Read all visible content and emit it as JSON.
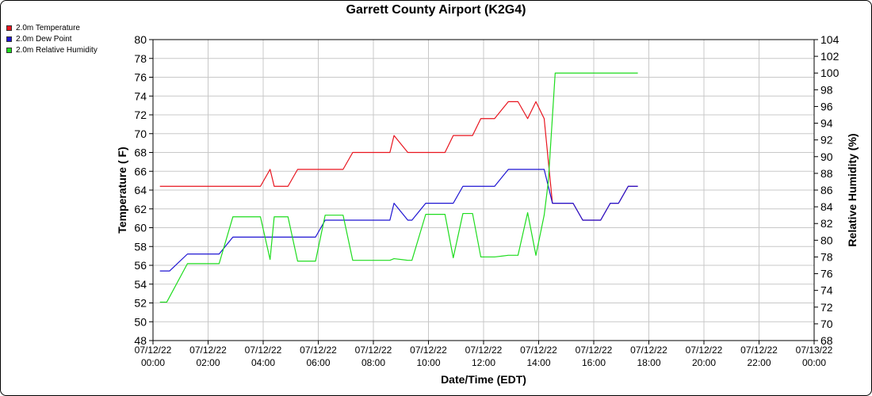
{
  "chart_data": {
    "type": "line",
    "title": "Garrett County Airport (K2G4)",
    "xlabel": "Date/Time (EDT)",
    "ylabel_left": "Temperature ( F)",
    "ylabel_right": "Relative Humidity (%)",
    "y_left_range": [
      48,
      80
    ],
    "y_left_ticks": [
      "48",
      "50",
      "52",
      "54",
      "56",
      "58",
      "60",
      "62",
      "64",
      "66",
      "68",
      "70",
      "72",
      "74",
      "76",
      "78",
      "80"
    ],
    "y_right_range": [
      68,
      104
    ],
    "y_right_ticks": [
      "68",
      "70",
      "72",
      "74",
      "76",
      "78",
      "80",
      "82",
      "84",
      "86",
      "88",
      "90",
      "92",
      "94",
      "96",
      "98",
      "100",
      "102",
      "104"
    ],
    "x_range_hours": [
      0,
      24
    ],
    "x_ticks": [
      {
        "hour": 0,
        "date": "07/12/22",
        "time": "00:00"
      },
      {
        "hour": 2,
        "date": "07/12/22",
        "time": "02:00"
      },
      {
        "hour": 4,
        "date": "07/12/22",
        "time": "04:00"
      },
      {
        "hour": 6,
        "date": "07/12/22",
        "time": "06:00"
      },
      {
        "hour": 8,
        "date": "07/12/22",
        "time": "08:00"
      },
      {
        "hour": 10,
        "date": "07/12/22",
        "time": "10:00"
      },
      {
        "hour": 12,
        "date": "07/12/22",
        "time": "12:00"
      },
      {
        "hour": 14,
        "date": "07/12/22",
        "time": "14:00"
      },
      {
        "hour": 16,
        "date": "07/12/22",
        "time": "16:00"
      },
      {
        "hour": 18,
        "date": "07/12/22",
        "time": "18:00"
      },
      {
        "hour": 20,
        "date": "07/12/22",
        "time": "20:00"
      },
      {
        "hour": 22,
        "date": "07/12/22",
        "time": "22:00"
      },
      {
        "hour": 24,
        "date": "07/13/22",
        "time": "00:00"
      }
    ],
    "grid": true,
    "legend_position": "top-left",
    "series": [
      {
        "name": "2.0m Temperature",
        "color": "#e8141e",
        "axis": "left",
        "points": [
          [
            0.25,
            64.4
          ],
          [
            0.5,
            64.4
          ],
          [
            3.9,
            64.4
          ],
          [
            4.25,
            66.2
          ],
          [
            4.4,
            64.4
          ],
          [
            4.9,
            64.4
          ],
          [
            5.25,
            66.2
          ],
          [
            6.9,
            66.2
          ],
          [
            7.25,
            68.0
          ],
          [
            8.6,
            68.0
          ],
          [
            8.75,
            69.8
          ],
          [
            9.25,
            68.0
          ],
          [
            10.6,
            68.0
          ],
          [
            10.9,
            69.8
          ],
          [
            11.6,
            69.8
          ],
          [
            11.9,
            71.6
          ],
          [
            12.4,
            71.6
          ],
          [
            12.9,
            73.4
          ],
          [
            13.25,
            73.4
          ],
          [
            13.6,
            71.6
          ],
          [
            13.9,
            73.4
          ],
          [
            14.2,
            71.6
          ],
          [
            14.5,
            62.6
          ],
          [
            15.25,
            62.6
          ],
          [
            15.6,
            60.8
          ],
          [
            16.25,
            60.8
          ],
          [
            16.6,
            62.6
          ],
          [
            16.9,
            62.6
          ],
          [
            17.25,
            64.4
          ],
          [
            17.6,
            64.4
          ]
        ]
      },
      {
        "name": "2.0m Dew Point",
        "color": "#1e14d2",
        "axis": "left",
        "points": [
          [
            0.25,
            55.4
          ],
          [
            0.6,
            55.4
          ],
          [
            1.25,
            57.2
          ],
          [
            2.4,
            57.2
          ],
          [
            2.9,
            59.0
          ],
          [
            5.9,
            59.0
          ],
          [
            6.25,
            60.8
          ],
          [
            8.6,
            60.8
          ],
          [
            8.75,
            62.6
          ],
          [
            9.25,
            60.8
          ],
          [
            9.4,
            60.8
          ],
          [
            9.9,
            62.6
          ],
          [
            10.9,
            62.6
          ],
          [
            11.25,
            64.4
          ],
          [
            12.4,
            64.4
          ],
          [
            12.9,
            66.2
          ],
          [
            14.2,
            66.2
          ],
          [
            14.5,
            62.6
          ],
          [
            15.25,
            62.6
          ],
          [
            15.6,
            60.8
          ],
          [
            16.25,
            60.8
          ],
          [
            16.6,
            62.6
          ],
          [
            16.9,
            62.6
          ],
          [
            17.25,
            64.4
          ],
          [
            17.6,
            64.4
          ]
        ]
      },
      {
        "name": "2.0m Relative Humidity",
        "color": "#1edc1e",
        "axis": "right",
        "points": [
          [
            0.25,
            72.6
          ],
          [
            0.5,
            72.6
          ],
          [
            1.25,
            77.2
          ],
          [
            2.4,
            77.2
          ],
          [
            2.9,
            82.8
          ],
          [
            3.9,
            82.8
          ],
          [
            4.25,
            77.7
          ],
          [
            4.4,
            82.8
          ],
          [
            4.9,
            82.8
          ],
          [
            5.25,
            77.5
          ],
          [
            5.9,
            77.5
          ],
          [
            6.25,
            83.0
          ],
          [
            6.9,
            83.0
          ],
          [
            7.25,
            77.6
          ],
          [
            8.6,
            77.6
          ],
          [
            8.75,
            77.8
          ],
          [
            9.25,
            77.6
          ],
          [
            9.4,
            77.6
          ],
          [
            9.9,
            83.1
          ],
          [
            10.6,
            83.1
          ],
          [
            10.9,
            77.9
          ],
          [
            11.25,
            83.2
          ],
          [
            11.6,
            83.2
          ],
          [
            11.9,
            78.0
          ],
          [
            12.4,
            78.0
          ],
          [
            12.9,
            78.2
          ],
          [
            13.25,
            78.2
          ],
          [
            13.6,
            83.3
          ],
          [
            13.9,
            78.2
          ],
          [
            14.2,
            83.0
          ],
          [
            14.35,
            87.0
          ],
          [
            14.6,
            100.0
          ],
          [
            17.6,
            100.0
          ]
        ]
      }
    ]
  }
}
